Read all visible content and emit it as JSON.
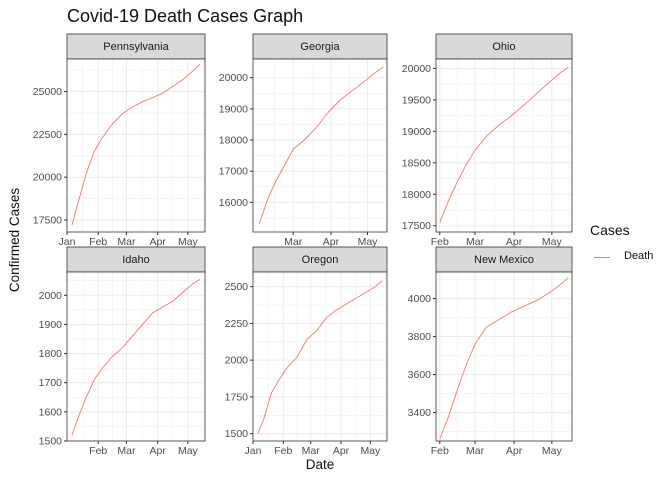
{
  "chart_data": {
    "type": "line",
    "title": "Covid-19 Death Cases Graph",
    "xlabel": "Date",
    "ylabel": "Confirmed Cases",
    "legend": {
      "title": "Cases",
      "entries": [
        "Death"
      ],
      "placement": "right"
    },
    "colors": {
      "series": "#f8766d",
      "strip_fill": "#d9d9d9",
      "grid": "#ebebeb",
      "panel_border": "#333333",
      "axis_text": "#4d4d4d"
    },
    "grid": true,
    "panels": [
      {
        "name": "Pennsylvania",
        "xlim": [
          "2021-01-01",
          "2021-05-18"
        ],
        "xticks": [
          "Jan",
          "Feb",
          "Mar",
          "Apr",
          "May"
        ],
        "ylim": [
          16800,
          26900
        ],
        "yticks": [
          17500,
          20000,
          22500,
          25000
        ],
        "series": [
          {
            "name": "Death",
            "x": [
              "2021-01-06",
              "2021-01-12",
              "2021-01-20",
              "2021-01-28",
              "2021-02-05",
              "2021-02-15",
              "2021-02-25",
              "2021-03-07",
              "2021-03-17",
              "2021-03-27",
              "2021-04-06",
              "2021-04-16",
              "2021-04-26",
              "2021-05-06",
              "2021-05-13"
            ],
            "y": [
              17200,
              18500,
              20200,
              21500,
              22300,
              23100,
              23700,
              24100,
              24400,
              24650,
              24900,
              25300,
              25700,
              26200,
              26600
            ]
          }
        ]
      },
      {
        "name": "Georgia",
        "xlim": [
          "2021-01-27",
          "2021-05-17"
        ],
        "xticks": [
          "Mar",
          "Apr",
          "May"
        ],
        "ylim": [
          15050,
          20600
        ],
        "yticks": [
          16000,
          17000,
          18000,
          19000,
          20000
        ],
        "series": [
          {
            "name": "Death",
            "x": [
              "2021-02-01",
              "2021-02-08",
              "2021-02-15",
              "2021-02-22",
              "2021-03-01",
              "2021-03-10",
              "2021-03-20",
              "2021-03-30",
              "2021-04-09",
              "2021-04-19",
              "2021-04-29",
              "2021-05-07",
              "2021-05-14"
            ],
            "y": [
              15300,
              16100,
              16700,
              17200,
              17700,
              18000,
              18400,
              18900,
              19300,
              19600,
              19900,
              20150,
              20350
            ]
          }
        ]
      },
      {
        "name": "Ohio",
        "xlim": [
          "2021-01-29",
          "2021-05-17"
        ],
        "xticks": [
          "Feb",
          "Mar",
          "Apr",
          "May"
        ],
        "ylim": [
          17400,
          20150
        ],
        "yticks": [
          17500,
          18000,
          18500,
          19000,
          19500,
          20000
        ],
        "series": [
          {
            "name": "Death",
            "x": [
              "2021-02-01",
              "2021-02-08",
              "2021-02-15",
              "2021-02-22",
              "2021-03-01",
              "2021-03-10",
              "2021-03-20",
              "2021-03-30",
              "2021-04-09",
              "2021-04-19",
              "2021-04-29",
              "2021-05-07",
              "2021-05-14"
            ],
            "y": [
              17550,
              17900,
              18200,
              18470,
              18700,
              18920,
              19100,
              19250,
              19420,
              19600,
              19780,
              19920,
              20020
            ]
          }
        ]
      },
      {
        "name": "Idaho",
        "xlim": [
          "2021-01-01",
          "2021-05-18"
        ],
        "xticks": [
          "Feb",
          "Mar",
          "Apr",
          "May"
        ],
        "ylim": [
          1500,
          2080
        ],
        "yticks": [
          1500,
          1600,
          1700,
          1800,
          1900,
          2000
        ],
        "series": [
          {
            "name": "Death",
            "x": [
              "2021-01-06",
              "2021-01-12",
              "2021-01-20",
              "2021-01-28",
              "2021-02-05",
              "2021-02-15",
              "2021-02-25",
              "2021-03-07",
              "2021-03-17",
              "2021-03-27",
              "2021-04-06",
              "2021-04-16",
              "2021-04-26",
              "2021-05-06",
              "2021-05-13"
            ],
            "y": [
              1520,
              1580,
              1650,
              1710,
              1750,
              1790,
              1820,
              1860,
              1900,
              1940,
              1960,
              1980,
              2010,
              2040,
              2055
            ]
          }
        ]
      },
      {
        "name": "Oregon",
        "xlim": [
          "2021-01-01",
          "2021-05-18"
        ],
        "xticks": [
          "Jan",
          "Feb",
          "Mar",
          "Apr",
          "May"
        ],
        "ylim": [
          1450,
          2600
        ],
        "yticks": [
          1500,
          1750,
          2000,
          2250,
          2500
        ],
        "series": [
          {
            "name": "Death",
            "x": [
              "2021-01-06",
              "2021-01-12",
              "2021-01-20",
              "2021-01-28",
              "2021-02-05",
              "2021-02-15",
              "2021-02-25",
              "2021-03-07",
              "2021-03-17",
              "2021-03-27",
              "2021-04-06",
              "2021-04-16",
              "2021-04-26",
              "2021-05-06",
              "2021-05-13"
            ],
            "y": [
              1500,
              1600,
              1780,
              1870,
              1950,
              2020,
              2140,
              2200,
              2290,
              2340,
              2380,
              2420,
              2460,
              2500,
              2540
            ]
          }
        ]
      },
      {
        "name": "New Mexico",
        "xlim": [
          "2021-01-29",
          "2021-05-17"
        ],
        "xticks": [
          "Feb",
          "Mar",
          "Apr",
          "May"
        ],
        "ylim": [
          3250,
          4140
        ],
        "yticks": [
          3400,
          3600,
          3800,
          4000
        ],
        "series": [
          {
            "name": "Death",
            "x": [
              "2021-02-01",
              "2021-02-08",
              "2021-02-15",
              "2021-02-22",
              "2021-03-01",
              "2021-03-10",
              "2021-03-20",
              "2021-03-30",
              "2021-04-09",
              "2021-04-19",
              "2021-04-29",
              "2021-05-07",
              "2021-05-14"
            ],
            "y": [
              3260,
              3380,
              3520,
              3650,
              3760,
              3850,
              3890,
              3930,
              3960,
              3990,
              4030,
              4070,
              4110
            ]
          }
        ]
      }
    ]
  }
}
